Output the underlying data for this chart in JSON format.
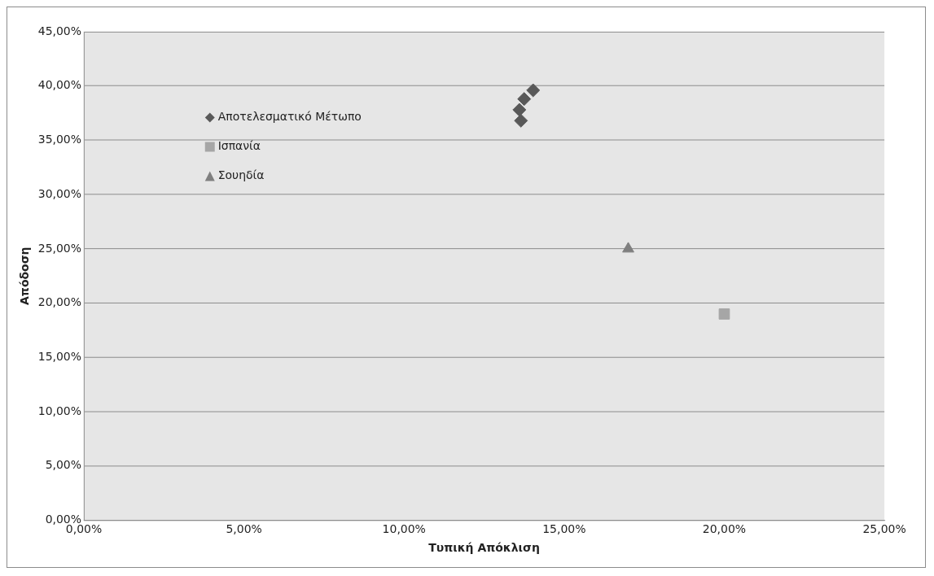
{
  "chart_data": {
    "type": "scatter",
    "xlabel": "Τυπική Απόκλιση",
    "ylabel": "Απόδοση",
    "series": [
      {
        "name": "Αποτελεσματικό Μέτωπο",
        "color": "#595959",
        "marker": "diamond",
        "x": [
          13.65,
          13.6,
          13.75,
          14.03
        ],
        "values": [
          36.8,
          37.8,
          38.8,
          39.6
        ]
      },
      {
        "name": "Ισπανία",
        "color": "#a6a6a6",
        "marker": "square",
        "x": [
          20.0
        ],
        "values": [
          19.0
        ]
      },
      {
        "name": "Σουηδία",
        "color": "#7f7f7f",
        "marker": "triangle",
        "x": [
          17.0
        ],
        "values": [
          25.0
        ]
      }
    ],
    "xlim": [
      0,
      25
    ],
    "ylim": [
      0,
      45
    ],
    "xticks": [
      {
        "value": 0,
        "label": "0,00%"
      },
      {
        "value": 5,
        "label": "5,00%"
      },
      {
        "value": 10,
        "label": "10,00%"
      },
      {
        "value": 15,
        "label": "15,00%"
      },
      {
        "value": 20,
        "label": "20,00%"
      },
      {
        "value": 25,
        "label": "25,00%"
      }
    ],
    "yticks": [
      {
        "value": 0,
        "label": "0,00%"
      },
      {
        "value": 5,
        "label": "5,00%"
      },
      {
        "value": 10,
        "label": "10,00%"
      },
      {
        "value": 15,
        "label": "15,00%"
      },
      {
        "value": 20,
        "label": "20,00%"
      },
      {
        "value": 25,
        "label": "25,00%"
      },
      {
        "value": 30,
        "label": "30,00%"
      },
      {
        "value": 35,
        "label": "35,00%"
      },
      {
        "value": 40,
        "label": "40,00%"
      },
      {
        "value": 45,
        "label": "45,00%"
      }
    ],
    "grid": "y",
    "legend": "top left"
  }
}
